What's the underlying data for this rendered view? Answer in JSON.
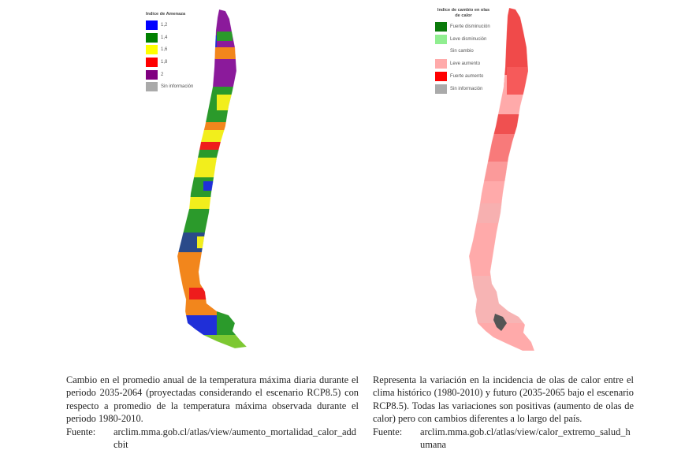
{
  "left_map": {
    "legend": {
      "title": "Indice de Amenaza",
      "items": [
        {
          "label": "1,2",
          "color": "#0000ff"
        },
        {
          "label": "1,4",
          "color": "#008000"
        },
        {
          "label": "1,6",
          "color": "#ffff00"
        },
        {
          "label": "1,8",
          "color": "#ff0000"
        },
        {
          "label": "2",
          "color": "#800080"
        },
        {
          "label": "Sin información",
          "color": "#aaaaaa"
        }
      ]
    },
    "colors": {
      "purple": "#8b1a9b",
      "blue": "#1f2fd8",
      "green": "#2b9a2b",
      "yellow": "#f2ee1c",
      "orange": "#f2861c",
      "red": "#ee1c1c",
      "lightgreen": "#7dc832",
      "navy": "#2a4a8a"
    }
  },
  "right_map": {
    "legend": {
      "title": "Indice de cambio en olas de calor",
      "items": [
        {
          "label": "Fuerte disminución",
          "color": "#0a7a0a"
        },
        {
          "label": "Leve disminución",
          "color": "#90ee90"
        },
        {
          "label": "Sin cambio",
          "color": "#ffffff"
        },
        {
          "label": "Leve aumento",
          "color": "#ffaaaa"
        },
        {
          "label": "Fuerte aumento",
          "color": "#ff0000"
        },
        {
          "label": "Sin información",
          "color": "#aaaaaa"
        }
      ]
    }
  },
  "captions": {
    "left": {
      "text": "Cambio en el promedio anual de la temperatura máxima diaria durante el periodo 2035-2064 (proyectadas considerando el escenario RCP8.5) con respecto a promedio de la temperatura máxima observada durante el periodo 1980-2010.",
      "source_label": "Fuente:",
      "source_url": "arclim.mma.gob.cl/atlas/view/aumento_mortalidad_calor_addcbit"
    },
    "right": {
      "text": "Representa la variación en la incidencia de olas de calor entre el clima histórico (1980-2010) y futuro (2035-2065 bajo el escenario RCP8.5). Todas las variaciones son positivas (aumento de olas de calor) pero con cambios diferentes a lo largo del país.",
      "source_label": "Fuente:",
      "source_url": "arclim.mma.gob.cl/atlas/view/calor_extremo_salud_humana"
    }
  }
}
